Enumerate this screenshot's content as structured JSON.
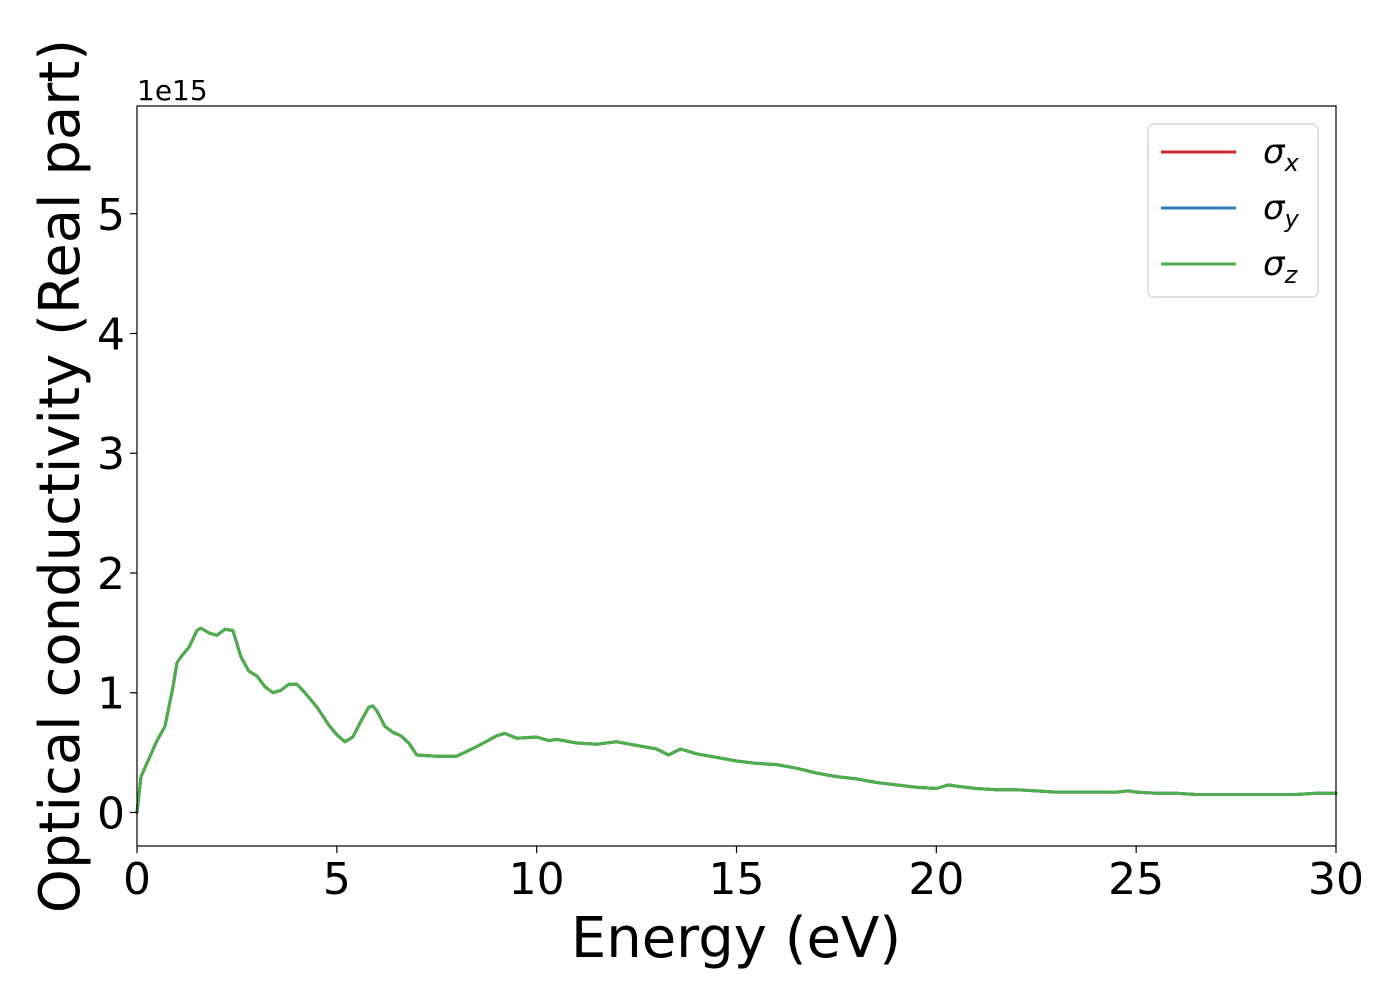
{
  "chart_data": {
    "type": "line",
    "xlabel": "Energy (eV)",
    "ylabel": "Optical conductivity (Real part)",
    "y_offset_label": "1e15",
    "y_scale_factor": 1000000000000000.0,
    "xlim": [
      0,
      30
    ],
    "ylim": [
      -0.28,
      5.9
    ],
    "x_ticks": [
      0,
      5,
      10,
      15,
      20,
      25,
      30
    ],
    "x_tick_labels": [
      "0",
      "5",
      "10",
      "15",
      "20",
      "25",
      "30"
    ],
    "y_ticks": [
      0,
      1,
      2,
      3,
      4,
      5
    ],
    "y_tick_labels": [
      "0",
      "1",
      "2",
      "3",
      "4",
      "5"
    ],
    "grid": false,
    "legend_position": "top-right",
    "series": [
      {
        "name": "σx",
        "legend_symbol": "σ",
        "legend_sub": "x",
        "color": "#d62728",
        "x": [
          0,
          0.1,
          0.3,
          0.5,
          0.7,
          0.9,
          1.0,
          1.1,
          1.3,
          1.5,
          1.6,
          1.8,
          2.0,
          2.2,
          2.4,
          2.6,
          2.8,
          3.0,
          3.2,
          3.4,
          3.6,
          3.8,
          4.0,
          4.2,
          4.5,
          4.8,
          5.0,
          5.2,
          5.4,
          5.6,
          5.8,
          5.9,
          6.0,
          6.2,
          6.4,
          6.6,
          6.8,
          7.0,
          7.5,
          8.0,
          8.5,
          9.0,
          9.2,
          9.5,
          10.0,
          10.3,
          10.5,
          11.0,
          11.5,
          12.0,
          12.5,
          13.0,
          13.3,
          13.6,
          14.0,
          14.5,
          15.0,
          15.5,
          16.0,
          16.5,
          17.0,
          17.5,
          18.0,
          18.5,
          19.0,
          19.5,
          20.0,
          20.3,
          20.5,
          21.0,
          21.5,
          22.0,
          22.5,
          23.0,
          23.5,
          24.0,
          24.5,
          24.8,
          25.0,
          25.5,
          26.0,
          26.5,
          27.0,
          27.5,
          28.0,
          28.5,
          29.0,
          29.5,
          30.0
        ],
        "values": [
          0.0,
          0.3,
          0.45,
          0.6,
          0.72,
          1.05,
          1.25,
          1.3,
          1.38,
          1.52,
          1.54,
          1.5,
          1.48,
          1.53,
          1.52,
          1.3,
          1.18,
          1.14,
          1.05,
          1.0,
          1.02,
          1.07,
          1.07,
          1.0,
          0.88,
          0.73,
          0.65,
          0.59,
          0.63,
          0.76,
          0.88,
          0.89,
          0.85,
          0.72,
          0.67,
          0.64,
          0.58,
          0.48,
          0.47,
          0.47,
          0.55,
          0.64,
          0.66,
          0.62,
          0.63,
          0.6,
          0.61,
          0.58,
          0.57,
          0.59,
          0.56,
          0.53,
          0.48,
          0.53,
          0.49,
          0.46,
          0.43,
          0.41,
          0.4,
          0.37,
          0.33,
          0.3,
          0.28,
          0.25,
          0.23,
          0.21,
          0.2,
          0.23,
          0.22,
          0.2,
          0.19,
          0.19,
          0.18,
          0.17,
          0.17,
          0.17,
          0.17,
          0.18,
          0.17,
          0.16,
          0.16,
          0.15,
          0.15,
          0.15,
          0.15,
          0.15,
          0.15,
          0.16,
          0.16
        ]
      },
      {
        "name": "σy",
        "legend_symbol": "σ",
        "legend_sub": "y",
        "color": "#377eb8",
        "x": [
          0,
          0.1,
          0.3,
          0.5,
          0.7,
          0.9,
          1.0,
          1.1,
          1.3,
          1.5,
          1.6,
          1.8,
          2.0,
          2.2,
          2.4,
          2.6,
          2.8,
          3.0,
          3.2,
          3.4,
          3.6,
          3.8,
          4.0,
          4.2,
          4.5,
          4.8,
          5.0,
          5.2,
          5.4,
          5.6,
          5.8,
          5.9,
          6.0,
          6.2,
          6.4,
          6.6,
          6.8,
          7.0,
          7.5,
          8.0,
          8.5,
          9.0,
          9.2,
          9.5,
          10.0,
          10.3,
          10.5,
          11.0,
          11.5,
          12.0,
          12.5,
          13.0,
          13.3,
          13.6,
          14.0,
          14.5,
          15.0,
          15.5,
          16.0,
          16.5,
          17.0,
          17.5,
          18.0,
          18.5,
          19.0,
          19.5,
          20.0,
          20.3,
          20.5,
          21.0,
          21.5,
          22.0,
          22.5,
          23.0,
          23.5,
          24.0,
          24.5,
          24.8,
          25.0,
          25.5,
          26.0,
          26.5,
          27.0,
          27.5,
          28.0,
          28.5,
          29.0,
          29.5,
          30.0
        ],
        "values": [
          0.0,
          0.3,
          0.45,
          0.6,
          0.72,
          1.05,
          1.25,
          1.3,
          1.38,
          1.52,
          1.54,
          1.5,
          1.48,
          1.53,
          1.52,
          1.3,
          1.18,
          1.14,
          1.05,
          1.0,
          1.02,
          1.07,
          1.07,
          1.0,
          0.88,
          0.73,
          0.65,
          0.59,
          0.63,
          0.76,
          0.88,
          0.89,
          0.85,
          0.72,
          0.67,
          0.64,
          0.58,
          0.48,
          0.47,
          0.47,
          0.55,
          0.64,
          0.66,
          0.62,
          0.63,
          0.6,
          0.61,
          0.58,
          0.57,
          0.59,
          0.56,
          0.53,
          0.48,
          0.53,
          0.49,
          0.46,
          0.43,
          0.41,
          0.4,
          0.37,
          0.33,
          0.3,
          0.28,
          0.25,
          0.23,
          0.21,
          0.2,
          0.23,
          0.22,
          0.2,
          0.19,
          0.19,
          0.18,
          0.17,
          0.17,
          0.17,
          0.17,
          0.18,
          0.17,
          0.16,
          0.16,
          0.15,
          0.15,
          0.15,
          0.15,
          0.15,
          0.15,
          0.16,
          0.16
        ]
      },
      {
        "name": "σz",
        "legend_symbol": "σ",
        "legend_sub": "z",
        "color": "#4daf4a",
        "x": [
          0,
          0.1,
          0.3,
          0.5,
          0.7,
          0.9,
          1.0,
          1.1,
          1.3,
          1.5,
          1.6,
          1.8,
          2.0,
          2.2,
          2.4,
          2.6,
          2.8,
          3.0,
          3.2,
          3.4,
          3.6,
          3.8,
          4.0,
          4.2,
          4.5,
          4.8,
          5.0,
          5.2,
          5.4,
          5.6,
          5.8,
          5.9,
          6.0,
          6.2,
          6.4,
          6.6,
          6.8,
          7.0,
          7.5,
          8.0,
          8.5,
          9.0,
          9.2,
          9.5,
          10.0,
          10.3,
          10.5,
          11.0,
          11.5,
          12.0,
          12.5,
          13.0,
          13.3,
          13.6,
          14.0,
          14.5,
          15.0,
          15.5,
          16.0,
          16.5,
          17.0,
          17.5,
          18.0,
          18.5,
          19.0,
          19.5,
          20.0,
          20.3,
          20.5,
          21.0,
          21.5,
          22.0,
          22.5,
          23.0,
          23.5,
          24.0,
          24.5,
          24.8,
          25.0,
          25.5,
          26.0,
          26.5,
          27.0,
          27.5,
          28.0,
          28.5,
          29.0,
          29.5,
          30.0
        ],
        "values": [
          0.0,
          0.3,
          0.45,
          0.6,
          0.72,
          1.05,
          1.25,
          1.3,
          1.38,
          1.52,
          1.54,
          1.5,
          1.48,
          1.53,
          1.52,
          1.3,
          1.18,
          1.14,
          1.05,
          1.0,
          1.02,
          1.07,
          1.07,
          1.0,
          0.88,
          0.73,
          0.65,
          0.59,
          0.63,
          0.76,
          0.88,
          0.89,
          0.85,
          0.72,
          0.67,
          0.64,
          0.58,
          0.48,
          0.47,
          0.47,
          0.55,
          0.64,
          0.66,
          0.62,
          0.63,
          0.6,
          0.61,
          0.58,
          0.57,
          0.59,
          0.56,
          0.53,
          0.48,
          0.53,
          0.49,
          0.46,
          0.43,
          0.41,
          0.4,
          0.37,
          0.33,
          0.3,
          0.28,
          0.25,
          0.23,
          0.21,
          0.2,
          0.23,
          0.22,
          0.2,
          0.19,
          0.19,
          0.18,
          0.17,
          0.17,
          0.17,
          0.17,
          0.18,
          0.17,
          0.16,
          0.16,
          0.15,
          0.15,
          0.15,
          0.15,
          0.15,
          0.15,
          0.16,
          0.16
        ]
      }
    ]
  }
}
